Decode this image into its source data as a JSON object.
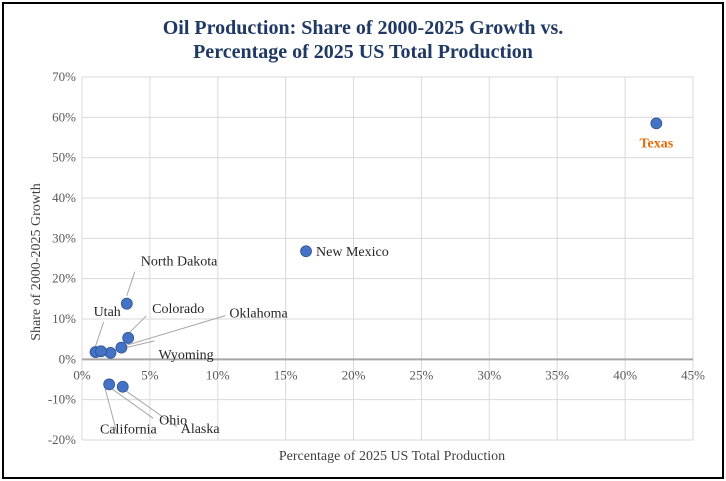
{
  "chart_data": {
    "type": "scatter",
    "title_line1": "Oil Production: Share of 2000-2025 Growth vs.",
    "title_line2": "Percentage of 2025 US Total Production",
    "xlabel": "Percentage of 2025 US Total Production",
    "ylabel": "Share of 2000-2025 Growth",
    "xlim": [
      0,
      45
    ],
    "ylim": [
      -20,
      70
    ],
    "xticks": [
      0,
      5,
      10,
      15,
      20,
      25,
      30,
      35,
      40,
      45
    ],
    "yticks": [
      -20,
      -10,
      0,
      10,
      20,
      30,
      40,
      50,
      60,
      70
    ],
    "x_tick_labels": [
      "0%",
      "5%",
      "10%",
      "15%",
      "20%",
      "25%",
      "30%",
      "35%",
      "40%",
      "45%"
    ],
    "y_tick_labels": [
      "-20%",
      "-10%",
      "0%",
      "10%",
      "20%",
      "30%",
      "40%",
      "50%",
      "60%",
      "70%"
    ],
    "grid": true,
    "point_color": "#4472c4",
    "highlight_color": "#e36c0a",
    "points": [
      {
        "label": "Texas",
        "x": 42.3,
        "y": 58.5,
        "highlight": true
      },
      {
        "label": "New Mexico",
        "x": 16.5,
        "y": 26.8
      },
      {
        "label": "North Dakota",
        "x": 3.3,
        "y": 13.8
      },
      {
        "label": "Colorado",
        "x": 3.4,
        "y": 5.3
      },
      {
        "label": "Oklahoma",
        "x": 2.9,
        "y": 2.9
      },
      {
        "label": "Wyoming",
        "x": 2.1,
        "y": 1.6
      },
      {
        "label": "Utah",
        "x": 1.0,
        "y": 1.8
      },
      {
        "label": "",
        "x": 1.4,
        "y": 2.0
      },
      {
        "label": "Ohio",
        "x": 2.0,
        "y": -6.2
      },
      {
        "label": "Alaska",
        "x": 3.0,
        "y": -6.8
      },
      {
        "label": "California",
        "x": null,
        "y": null
      }
    ]
  }
}
